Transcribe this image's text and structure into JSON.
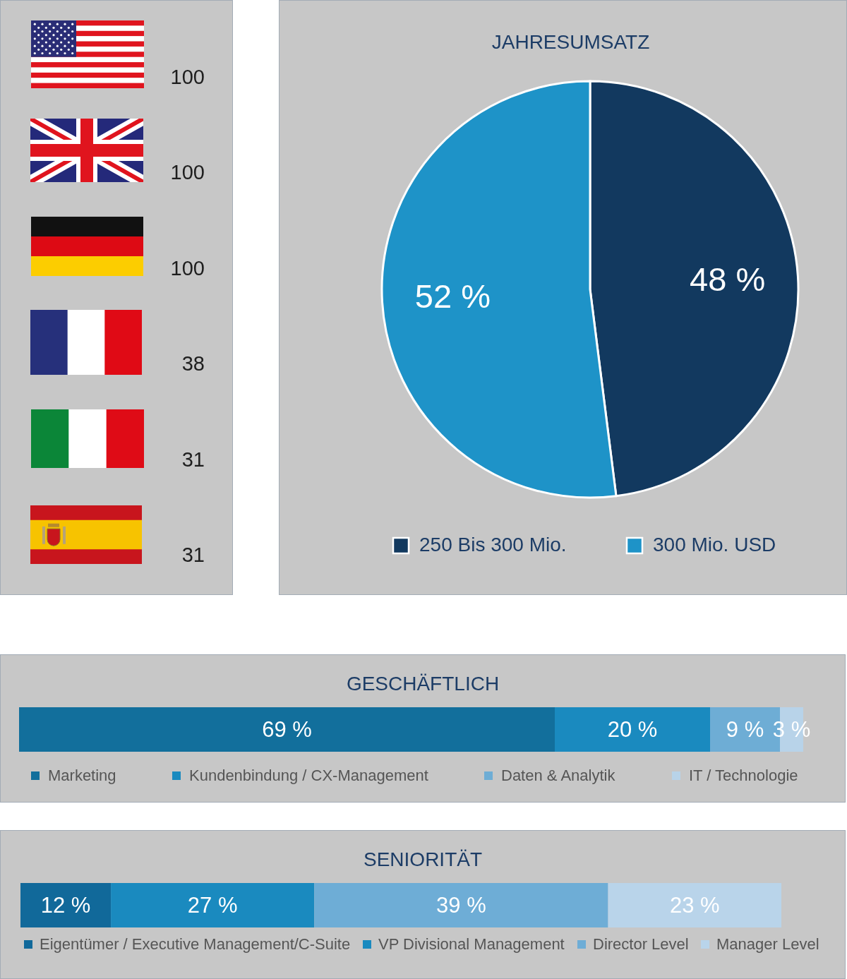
{
  "chart_data": [
    {
      "type": "other",
      "categories": [
        null,
        null,
        null,
        null,
        null,
        null
      ],
      "values": [
        100,
        100,
        100,
        38,
        31,
        31
      ],
      "data_labels": true
    },
    {
      "type": "pie",
      "title": "JAHRESUMSATZ",
      "categories": [
        "250 Bis 300 Mio.",
        "300 Mio. USD"
      ],
      "values": [
        48,
        52
      ],
      "value_labels": [
        "48 %",
        "52 %"
      ],
      "colors": [
        "#12395f",
        "#1e93c8"
      ],
      "legend": "bottom"
    },
    {
      "type": "bar",
      "title": "GESCHÄFTLICH",
      "orientation": "horizontal",
      "stacked": true,
      "categories": [
        null
      ],
      "series": [
        {
          "name": "Marketing",
          "color": "#126f9c",
          "values": [
            69
          ],
          "value_labels": [
            "69 %"
          ]
        },
        {
          "name": "Kundenbindung / CX-Management",
          "color": "#1a8abf",
          "values": [
            20
          ],
          "value_labels": [
            "20 %"
          ]
        },
        {
          "name": "Daten & Analytik",
          "color": "#6eadd5",
          "values": [
            9
          ],
          "value_labels": [
            "9 %"
          ]
        },
        {
          "name": "IT / Technologie",
          "color": "#b8d3e9",
          "values": [
            3
          ],
          "value_labels": [
            "3 %"
          ]
        }
      ],
      "legend": "bottom"
    },
    {
      "type": "bar",
      "title": "SENIORITÄT",
      "orientation": "horizontal",
      "stacked": true,
      "categories": [
        null
      ],
      "series": [
        {
          "name": "Eigentümer / Executive Management/C-Suite",
          "color": "#11699a",
          "values": [
            12
          ],
          "value_labels": [
            "12 %"
          ]
        },
        {
          "name": "VP Divisional Management",
          "color": "#1a8abf",
          "values": [
            27
          ],
          "value_labels": [
            "27 %"
          ]
        },
        {
          "name": "Director Level",
          "color": "#6eadd6",
          "values": [
            39
          ],
          "value_labels": [
            "39 %"
          ]
        },
        {
          "name": "Manager Level",
          "color": "#b9d4ea",
          "values": [
            23
          ],
          "value_labels": [
            "23 %"
          ]
        }
      ],
      "legend": "bottom"
    }
  ]
}
